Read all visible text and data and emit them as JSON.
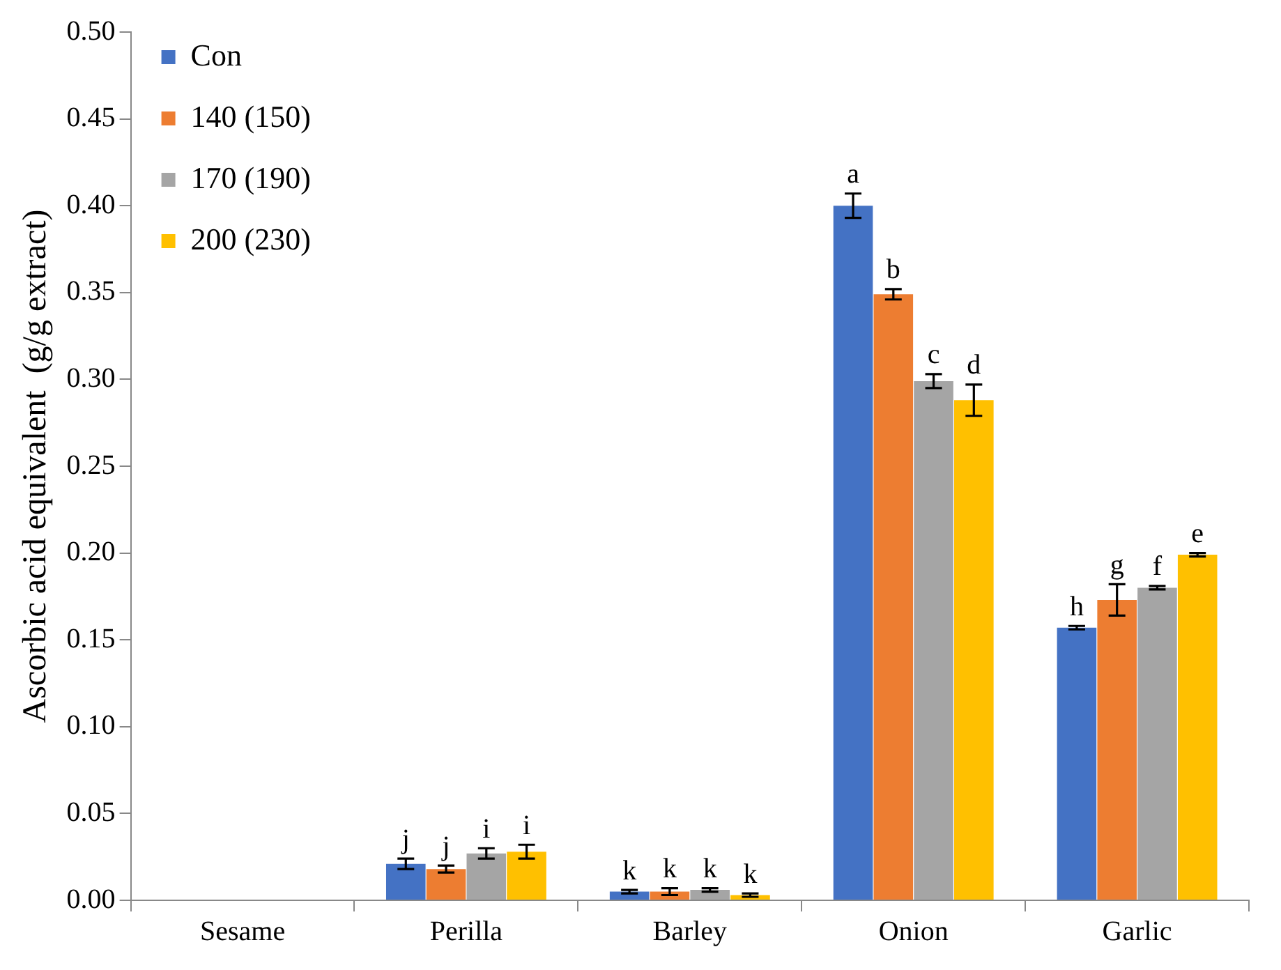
{
  "chart_data": {
    "type": "bar",
    "ylabel": "Ascorbic acid equivalent  (g/g extract)",
    "categories": [
      "Sesame",
      "Perilla",
      "Barley",
      "Onion",
      "Garlic"
    ],
    "ylim": [
      0,
      0.5
    ],
    "yticks": [
      {
        "value": 0,
        "label": "0.00"
      },
      {
        "value": 0.05,
        "label": "0.05"
      },
      {
        "value": 0.1,
        "label": "0.10"
      },
      {
        "value": 0.15,
        "label": "0.15"
      },
      {
        "value": 0.2,
        "label": "0.20"
      },
      {
        "value": 0.25,
        "label": "0.25"
      },
      {
        "value": 0.3,
        "label": "0.30"
      },
      {
        "value": 0.35,
        "label": "0.35"
      },
      {
        "value": 0.4,
        "label": "0.40"
      },
      {
        "value": 0.45,
        "label": "0.45"
      },
      {
        "value": 0.5,
        "label": "0.50"
      }
    ],
    "grid": false,
    "legend": "top left",
    "series": [
      {
        "name": "Con",
        "color": "#4472c4",
        "values": [
          0,
          0.021,
          0.005,
          0.4,
          0.157
        ],
        "errors": [
          null,
          0.003,
          0.001,
          0.007,
          0.001
        ],
        "value_labels": [
          null,
          "j",
          "k",
          "a",
          "h"
        ]
      },
      {
        "name": "140 (150)",
        "color": "#ed7d31",
        "values": [
          0,
          0.018,
          0.005,
          0.349,
          0.173
        ],
        "errors": [
          null,
          0.002,
          0.002,
          0.003,
          0.009
        ],
        "value_labels": [
          null,
          "j",
          "k",
          "b",
          "g"
        ]
      },
      {
        "name": "170 (190)",
        "color": "#a5a5a5",
        "values": [
          0,
          0.027,
          0.006,
          0.299,
          0.18
        ],
        "errors": [
          null,
          0.003,
          0.001,
          0.004,
          0.001
        ],
        "value_labels": [
          null,
          "i",
          "k",
          "c",
          "f"
        ]
      },
      {
        "name": "200 (230)",
        "color": "#ffc000",
        "values": [
          0,
          0.028,
          0.003,
          0.288,
          0.199
        ],
        "errors": [
          null,
          0.004,
          0.001,
          0.009,
          0.001
        ],
        "value_labels": [
          null,
          "i",
          "k",
          "d",
          "e"
        ]
      }
    ]
  }
}
